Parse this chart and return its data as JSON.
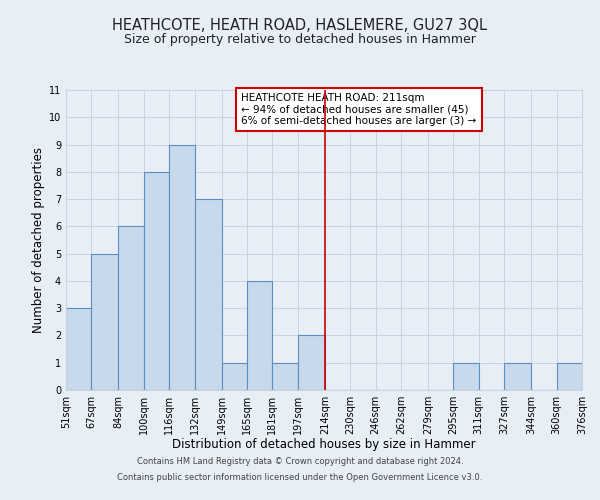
{
  "title": "HEATHCOTE, HEATH ROAD, HASLEMERE, GU27 3QL",
  "subtitle": "Size of property relative to detached houses in Hammer",
  "xlabel": "Distribution of detached houses by size in Hammer",
  "ylabel": "Number of detached properties",
  "bin_edges": [
    51,
    67,
    84,
    100,
    116,
    132,
    149,
    165,
    181,
    197,
    214,
    230,
    246,
    262,
    279,
    295,
    311,
    327,
    344,
    360,
    376
  ],
  "bar_heights": [
    3,
    5,
    6,
    8,
    9,
    7,
    1,
    4,
    1,
    2,
    0,
    0,
    0,
    0,
    0,
    1,
    0,
    1,
    0,
    1
  ],
  "bar_facecolor": "#c9d9ec",
  "bar_edgecolor": "#5b8ec4",
  "bar_linewidth": 0.8,
  "grid_color": "#c8d4e0",
  "background_color": "#e8eef5",
  "vline_x": 214,
  "vline_color": "#cc0000",
  "vline_linewidth": 1.2,
  "ylim": [
    0,
    11
  ],
  "yticks": [
    0,
    1,
    2,
    3,
    4,
    5,
    6,
    7,
    8,
    9,
    10,
    11
  ],
  "annotation_title": "HEATHCOTE HEATH ROAD: 211sqm",
  "annotation_line1": "← 94% of detached houses are smaller (45)",
  "annotation_line2": "6% of semi-detached houses are larger (3) →",
  "annotation_box_edgecolor": "#cc0000",
  "footer_line1": "Contains HM Land Registry data © Crown copyright and database right 2024.",
  "footer_line2": "Contains public sector information licensed under the Open Government Licence v3.0.",
  "title_fontsize": 10.5,
  "subtitle_fontsize": 9,
  "xlabel_fontsize": 8.5,
  "ylabel_fontsize": 8.5,
  "tick_fontsize": 7,
  "annotation_fontsize": 7.5,
  "footer_fontsize": 6
}
